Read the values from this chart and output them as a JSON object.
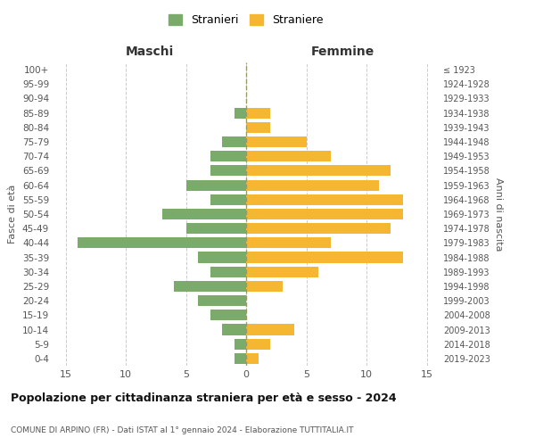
{
  "age_groups_bottom_to_top": [
    "0-4",
    "5-9",
    "10-14",
    "15-19",
    "20-24",
    "25-29",
    "30-34",
    "35-39",
    "40-44",
    "45-49",
    "50-54",
    "55-59",
    "60-64",
    "65-69",
    "70-74",
    "75-79",
    "80-84",
    "85-89",
    "90-94",
    "95-99",
    "100+"
  ],
  "birth_years_bottom_to_top": [
    "2019-2023",
    "2014-2018",
    "2009-2013",
    "2004-2008",
    "1999-2003",
    "1994-1998",
    "1989-1993",
    "1984-1988",
    "1979-1983",
    "1974-1978",
    "1969-1973",
    "1964-1968",
    "1959-1963",
    "1954-1958",
    "1949-1953",
    "1944-1948",
    "1939-1943",
    "1934-1938",
    "1929-1933",
    "1924-1928",
    "≤ 1923"
  ],
  "males_bottom_to_top": [
    1,
    1,
    2,
    3,
    4,
    6,
    3,
    4,
    14,
    5,
    7,
    3,
    5,
    3,
    3,
    2,
    0,
    1,
    0,
    0,
    0
  ],
  "females_bottom_to_top": [
    1,
    2,
    4,
    0,
    0,
    3,
    6,
    13,
    7,
    12,
    13,
    13,
    11,
    12,
    7,
    5,
    2,
    2,
    0,
    0,
    0
  ],
  "male_color": "#7aab6b",
  "female_color": "#f5b731",
  "center_line_color": "#999966",
  "grid_color": "#cccccc",
  "title": "Popolazione per cittadinanza straniera per età e sesso - 2024",
  "subtitle": "COMUNE DI ARPINO (FR) - Dati ISTAT al 1° gennaio 2024 - Elaborazione TUTTITALIA.IT",
  "label_left": "Maschi",
  "label_right": "Femmine",
  "ylabel_left": "Fasce di età",
  "ylabel_right": "Anni di nascita",
  "legend_male": "Stranieri",
  "legend_female": "Straniere",
  "xlim": 16,
  "bar_height": 0.75,
  "bg_color": "#ffffff"
}
